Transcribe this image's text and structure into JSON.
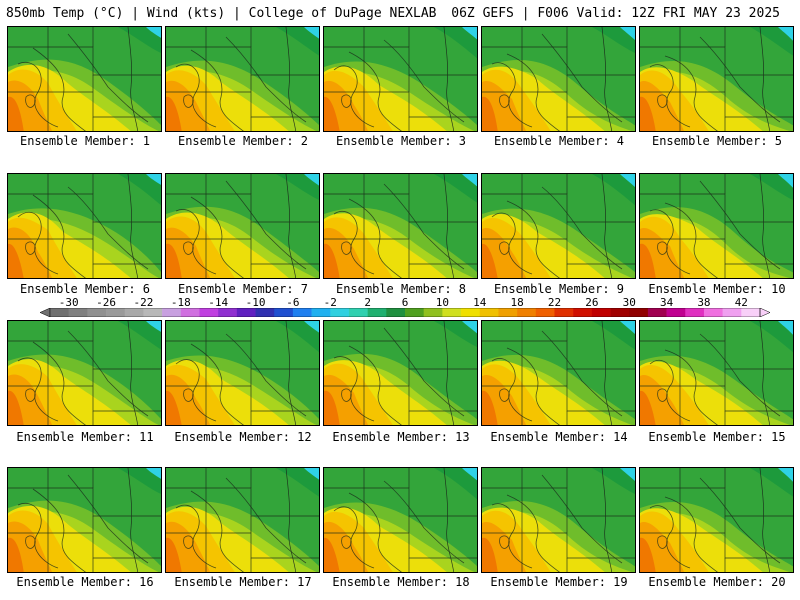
{
  "header": {
    "left": "850mb Temp (°C) | Wind (kts) | College of DuPage NEXLAB",
    "right": "06Z GEFS | F006 Valid: 12Z FRI MAY 23 2025"
  },
  "members": [
    "Ensemble Member: 1",
    "Ensemble Member: 2",
    "Ensemble Member: 3",
    "Ensemble Member: 4",
    "Ensemble Member: 5",
    "Ensemble Member: 6",
    "Ensemble Member: 7",
    "Ensemble Member: 8",
    "Ensemble Member: 9",
    "Ensemble Member: 10",
    "Ensemble Member: 11",
    "Ensemble Member: 12",
    "Ensemble Member: 13",
    "Ensemble Member: 14",
    "Ensemble Member: 15",
    "Ensemble Member: 16",
    "Ensemble Member: 17",
    "Ensemble Member: 18",
    "Ensemble Member: 19",
    "Ensemble Member: 20"
  ],
  "colorbar": {
    "labels": [
      "-30",
      "-26",
      "-22",
      "-18",
      "-14",
      "-10",
      "-6",
      "-2",
      "2",
      "6",
      "10",
      "14",
      "18",
      "22",
      "26",
      "30",
      "34",
      "38",
      "42"
    ],
    "min": -32,
    "max": 44,
    "colors": [
      "#707070",
      "#808080",
      "#909090",
      "#9a9a9a",
      "#a9a9a9",
      "#b8b8b8",
      "#c8a0e0",
      "#d070e0",
      "#c040e0",
      "#9030d0",
      "#6020c0",
      "#3030b0",
      "#2050d0",
      "#2080f0",
      "#20b0f0",
      "#30d0e0",
      "#30d0b0",
      "#20b070",
      "#209040",
      "#50a020",
      "#90c020",
      "#d0e020",
      "#f0e000",
      "#f0c000",
      "#f0a000",
      "#f08000",
      "#f06000",
      "#e03000",
      "#d01000",
      "#c00000",
      "#a00000",
      "#900000",
      "#a00050",
      "#c00090",
      "#e030c0",
      "#f070e0",
      "#f0a0f0",
      "#f8d0f8"
    ]
  },
  "map_palette": {
    "cold": "#2fd2e6",
    "green_dark": "#1d9a3c",
    "green_mid": "#33a53a",
    "green_light": "#6fbd2b",
    "lime": "#a9d41e",
    "yellow": "#ecdf0a",
    "gold": "#f5c400",
    "orange": "#f5a000",
    "orange_dark": "#f07800",
    "red": "#e34a00",
    "line": "#1a2a1a"
  }
}
